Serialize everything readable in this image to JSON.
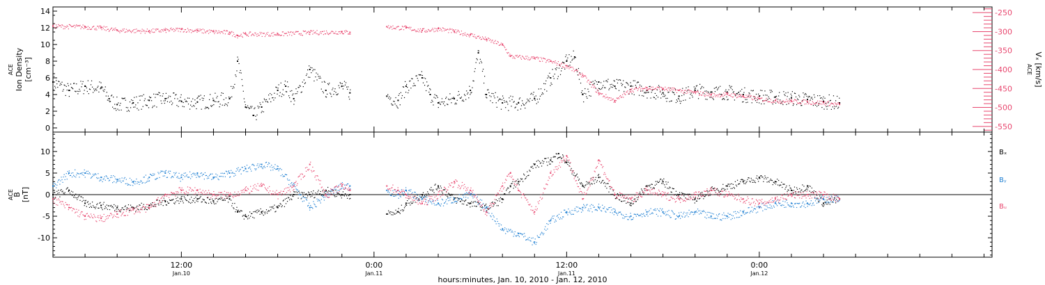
{
  "colors": {
    "black": "#000000",
    "pink": "#e8466e",
    "blue": "#1e7fd2"
  },
  "x_axis": {
    "start_hours": 4,
    "end_hours": 62.5,
    "ticks": [
      {
        "hours": 12,
        "time": "12:00",
        "date": "Jan.10"
      },
      {
        "hours": 24,
        "time": "0:00",
        "date": "Jan.11"
      },
      {
        "hours": 36,
        "time": "12:00",
        "date": "Jan.11"
      },
      {
        "hours": 48,
        "time": "0:00",
        "date": "Jan.12"
      }
    ],
    "caption": "hours:minutes, Jan. 10, 2010 - Jan. 12, 2010"
  },
  "chart_data": [
    {
      "type": "scatter",
      "panel": "top",
      "ylabel_left": [
        "ACE",
        "Ion Density",
        "[cm⁻³]"
      ],
      "ylabel_right": [
        "ACE",
        "Vₓ [km/s]"
      ],
      "left_axis": {
        "ylim": [
          -0.5,
          14.5
        ],
        "ticks": [
          0,
          2,
          4,
          6,
          8,
          10,
          12,
          14
        ]
      },
      "right_axis": {
        "ylim": [
          -565,
          -235
        ],
        "ticks": [
          -550,
          -500,
          -450,
          -400,
          -350,
          -300,
          -250
        ]
      },
      "data_gap_hours": [
        22.5,
        24.8
      ],
      "series": [
        {
          "axis": "left",
          "color": "black",
          "x": [
            4,
            5,
            6,
            7,
            7.5,
            8,
            9,
            10,
            11,
            12,
            13,
            14,
            15,
            15.5,
            16,
            16.5,
            17,
            18,
            18.5,
            19,
            20,
            21,
            22,
            22.5,
            24.8,
            25.5,
            26,
            27,
            27.5,
            28,
            29,
            30,
            30.5,
            31,
            32,
            33,
            34,
            35,
            36,
            36.5,
            37,
            38,
            39,
            40,
            41,
            42,
            43,
            44,
            45,
            46,
            47,
            48,
            49,
            50,
            51,
            52,
            53
          ],
          "y": [
            5.5,
            4.5,
            5,
            4.8,
            3.5,
            2.8,
            3,
            3.3,
            3.5,
            3.2,
            3.1,
            3.3,
            3.5,
            8,
            2.5,
            1.5,
            2.5,
            4.5,
            5,
            3.5,
            7,
            4.5,
            5,
            4.2,
            3.8,
            3.3,
            5,
            6,
            4,
            3,
            3.5,
            4.5,
            9,
            4,
            3,
            3,
            3.5,
            6,
            8,
            8.5,
            4,
            5.5,
            5,
            5,
            4.5,
            4.2,
            3.8,
            4.5,
            4.3,
            4.3,
            4,
            3.8,
            3.7,
            3.6,
            3.4,
            3.2,
            3
          ]
        },
        {
          "axis": "right",
          "color": "pink",
          "x": [
            4,
            6,
            7,
            8,
            10,
            11,
            12,
            13,
            14,
            15,
            15.5,
            16,
            18,
            20,
            22,
            22.5,
            24.8,
            26,
            27,
            28,
            29,
            30,
            31,
            32,
            32.5,
            34,
            35,
            36,
            37,
            38,
            39,
            40,
            41,
            42,
            43,
            44,
            45,
            46,
            47,
            48,
            49,
            50,
            51,
            52,
            53
          ],
          "y": [
            -285,
            -287,
            -290,
            -296,
            -298,
            -296,
            -294,
            -297,
            -300,
            -302,
            -310,
            -306,
            -306,
            -302,
            -300,
            -302,
            -287,
            -290,
            -297,
            -292,
            -299,
            -308,
            -320,
            -335,
            -365,
            -370,
            -378,
            -390,
            -415,
            -462,
            -482,
            -453,
            -448,
            -450,
            -455,
            -460,
            -467,
            -465,
            -470,
            -477,
            -482,
            -483,
            -485,
            -487,
            -492
          ]
        }
      ]
    },
    {
      "type": "scatter",
      "panel": "bottom",
      "ylabel_left": [
        "ACE",
        "B",
        "[nT]"
      ],
      "left_axis": {
        "ylim": [
          -14.5,
          14.5
        ],
        "ticks": [
          -10,
          -5,
          0,
          5,
          10
        ]
      },
      "legend": {
        "placement": "right",
        "entries": [
          "Bₓ",
          "Bᵧ",
          "Bᵤ"
        ]
      },
      "data_gap_hours": [
        22.5,
        24.8
      ],
      "series": [
        {
          "name": "Bₓ",
          "color": "black",
          "x": [
            4,
            5,
            6,
            7,
            8,
            9,
            10,
            11,
            12,
            13,
            14,
            15,
            15.5,
            16,
            17,
            18,
            19,
            20,
            21,
            22,
            22.5,
            24.8,
            25.5,
            26,
            27,
            28,
            29,
            30,
            31,
            32,
            32.5,
            33,
            34,
            35,
            35.5,
            36,
            37,
            38,
            39,
            40,
            41,
            42,
            43,
            44,
            45,
            46,
            47,
            48,
            49,
            50,
            51,
            52,
            53
          ],
          "y": [
            0,
            1,
            -2,
            -2.5,
            -3,
            -3,
            -2.5,
            -1.5,
            -1,
            -1,
            -1.5,
            -1,
            -4,
            -5,
            -4,
            -3,
            0,
            0,
            1,
            0,
            0,
            -4.5,
            -4,
            -2,
            0,
            2,
            -1,
            -2,
            -3,
            -1,
            2,
            3,
            7,
            8,
            9.5,
            7.5,
            2,
            4,
            0,
            -2,
            2,
            3,
            0,
            -1,
            1,
            2,
            3,
            4,
            3,
            1,
            2,
            -2,
            -1
          ]
        },
        {
          "name": "Bᵧ",
          "color": "blue",
          "x": [
            4,
            5,
            6,
            7,
            8,
            9,
            10,
            11,
            12,
            13,
            14,
            15,
            16,
            17,
            18,
            19,
            20,
            21,
            22,
            22.5,
            24.8,
            25.5,
            26,
            27,
            28,
            29,
            30,
            31,
            32,
            33,
            34,
            35,
            36,
            37,
            38,
            39,
            40,
            41,
            42,
            43,
            44,
            45,
            46,
            47,
            48,
            49,
            50,
            51,
            52,
            53
          ],
          "y": [
            2,
            5,
            5,
            4,
            3.5,
            3,
            4,
            5,
            4,
            5,
            4,
            5,
            6,
            7,
            6,
            2,
            -3,
            0,
            2,
            2,
            1,
            0,
            1,
            -1,
            -2,
            -1,
            0,
            -3,
            -8,
            -9,
            -11,
            -6,
            -4,
            -3,
            -3,
            -4,
            -5,
            -4,
            -4,
            -5,
            -4,
            -5,
            -5,
            -4,
            -3,
            -2,
            -2,
            -2,
            -1,
            -1
          ]
        },
        {
          "name": "Bᵤ",
          "color": "pink",
          "x": [
            4,
            5,
            6,
            7,
            8,
            9,
            10,
            11,
            12,
            13,
            14,
            15,
            16,
            17,
            18,
            19,
            20,
            21,
            22,
            22.5,
            24.8,
            25.5,
            26,
            27,
            28,
            29,
            30,
            31,
            32,
            32.5,
            33,
            34,
            35,
            36,
            37,
            38,
            39,
            40,
            41,
            42,
            43,
            44,
            45,
            46,
            47,
            48,
            49,
            50,
            51,
            52,
            53
          ],
          "y": [
            -1,
            -3,
            -5,
            -5.5,
            -4.5,
            -3.5,
            -3,
            0,
            1,
            1,
            0,
            0,
            1,
            2,
            0,
            2,
            7,
            0,
            2,
            1,
            2,
            1,
            0,
            -2,
            0,
            3,
            1,
            -4,
            2,
            5,
            1,
            -4,
            5,
            9,
            -1,
            8,
            0,
            -1,
            1,
            0,
            -1,
            0,
            1,
            0,
            -1,
            -2,
            -1,
            0,
            0,
            0,
            -1
          ]
        }
      ]
    }
  ]
}
